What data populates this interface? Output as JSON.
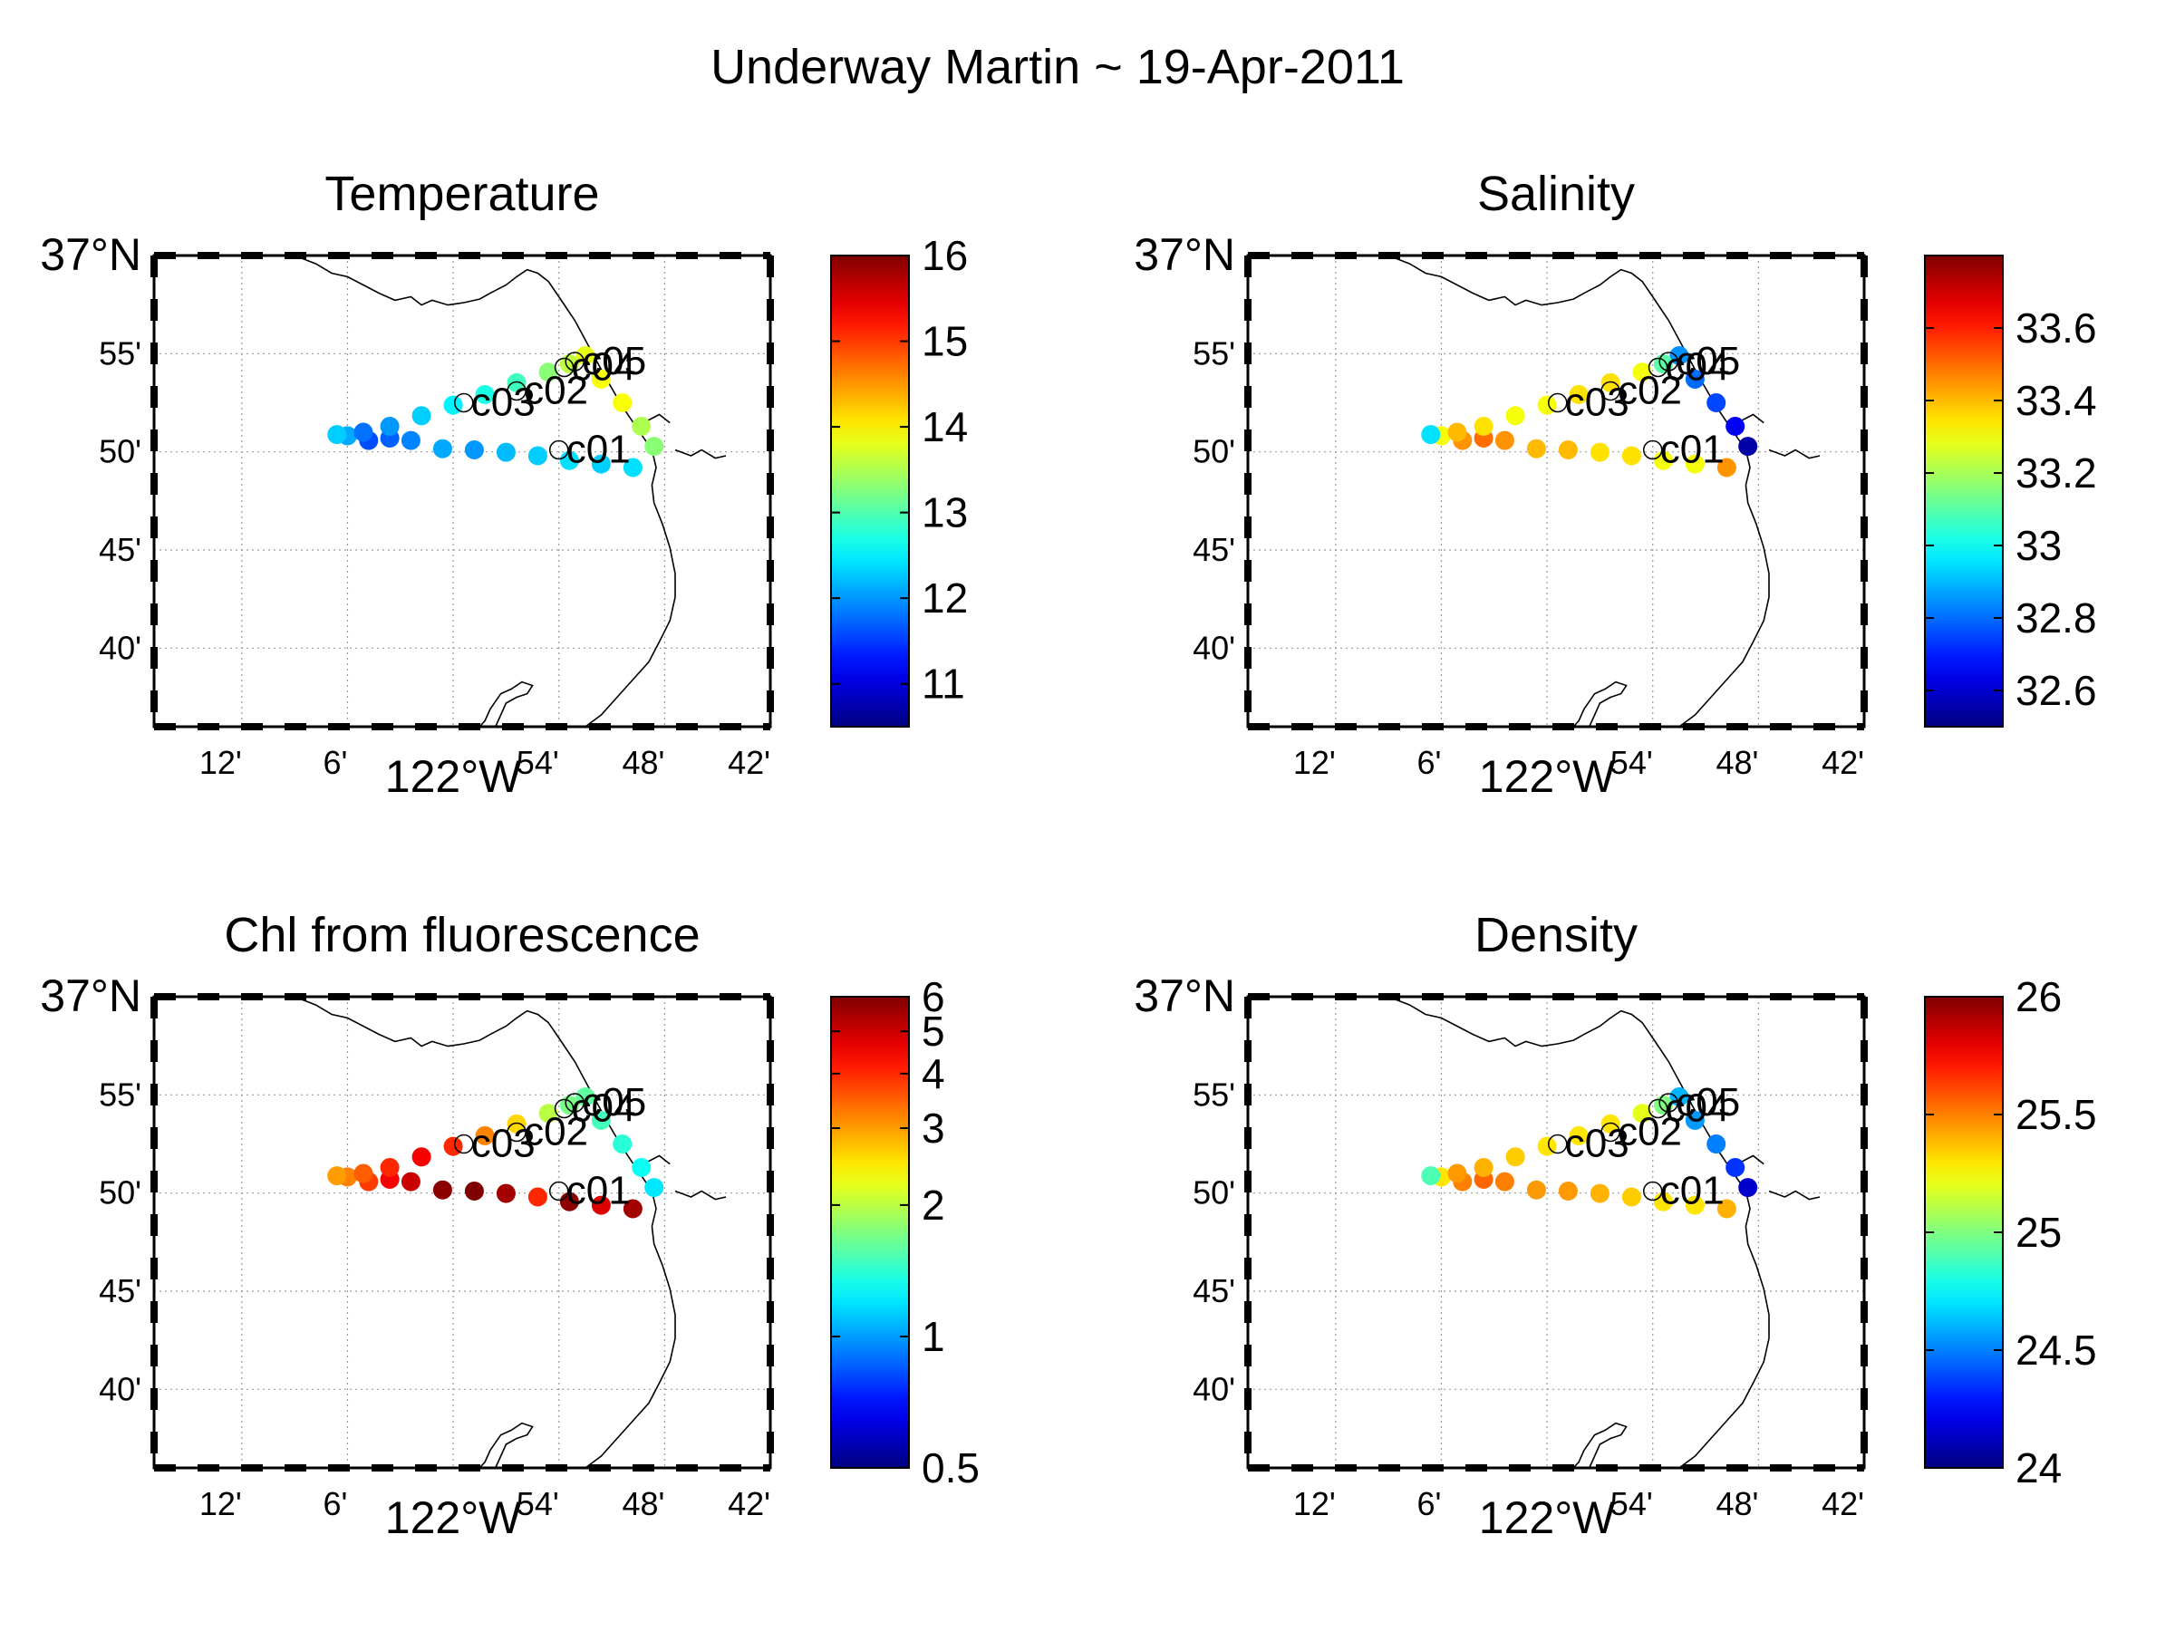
{
  "figure": {
    "title": "Underway Martin ~ 19-Apr-2011"
  },
  "map": {
    "lon_range": [
      -122.283,
      -121.7
    ],
    "lat_range": [
      36.6,
      37.0
    ],
    "x_ticks": [
      {
        "lon": -122.2,
        "label": "12'"
      },
      {
        "lon": -122.1,
        "label": "6'"
      },
      {
        "lon": -122.0,
        "label": "122°W"
      },
      {
        "lon": -121.9,
        "label": "54'"
      },
      {
        "lon": -121.8,
        "label": "48'"
      },
      {
        "lon": -121.7,
        "label": "42'"
      }
    ],
    "y_ticks": [
      {
        "lat": 37.0,
        "label": "37°N"
      },
      {
        "lat": 36.9167,
        "label": "55'"
      },
      {
        "lat": 36.8333,
        "label": "50'"
      },
      {
        "lat": 36.75,
        "label": "45'"
      },
      {
        "lat": 36.6667,
        "label": "40'"
      }
    ],
    "colormap": "jet",
    "coastline_color": "#000000",
    "grid": true
  },
  "stations": [
    {
      "label": "c01",
      "lon": -121.9,
      "lat": 36.835
    },
    {
      "label": "c02",
      "lon": -121.94,
      "lat": 36.885
    },
    {
      "label": "c03",
      "lon": -121.99,
      "lat": 36.875
    },
    {
      "label": "c04",
      "lon": -121.895,
      "lat": 36.905
    },
    {
      "label": "c05",
      "lon": -121.885,
      "lat": 36.91
    }
  ],
  "chart_data": [
    {
      "type": "scatter",
      "title": "Temperature",
      "xlabel": "",
      "ylabel": "",
      "colorbar": {
        "min": 10.5,
        "max": 16,
        "ticks": [
          11,
          12,
          13,
          14,
          15,
          16
        ],
        "tick_labels": [
          "11",
          "12",
          "13",
          "14",
          "15",
          "16"
        ],
        "scale": "linear"
      },
      "points": [
        {
          "lon": -121.875,
          "lat": 36.915,
          "value": 13.8
        },
        {
          "lon": -121.86,
          "lat": 36.895,
          "value": 13.9
        },
        {
          "lon": -121.84,
          "lat": 36.875,
          "value": 13.9
        },
        {
          "lon": -121.822,
          "lat": 36.855,
          "value": 13.5
        },
        {
          "lon": -121.81,
          "lat": 36.838,
          "value": 13.3
        },
        {
          "lon": -121.83,
          "lat": 36.82,
          "value": 12.4
        },
        {
          "lon": -121.86,
          "lat": 36.823,
          "value": 12.3
        },
        {
          "lon": -121.89,
          "lat": 36.826,
          "value": 12.4
        },
        {
          "lon": -121.92,
          "lat": 36.83,
          "value": 12.3
        },
        {
          "lon": -121.95,
          "lat": 36.833,
          "value": 12.2
        },
        {
          "lon": -121.98,
          "lat": 36.835,
          "value": 12.0
        },
        {
          "lon": -122.01,
          "lat": 36.836,
          "value": 12.1
        },
        {
          "lon": -122.04,
          "lat": 36.843,
          "value": 11.9
        },
        {
          "lon": -122.06,
          "lat": 36.845,
          "value": 11.7
        },
        {
          "lon": -122.08,
          "lat": 36.843,
          "value": 11.6
        },
        {
          "lon": -122.1,
          "lat": 36.847,
          "value": 12.1
        },
        {
          "lon": -122.11,
          "lat": 36.848,
          "value": 12.3
        },
        {
          "lon": -122.085,
          "lat": 36.85,
          "value": 11.8
        },
        {
          "lon": -122.06,
          "lat": 36.855,
          "value": 12.0
        },
        {
          "lon": -122.03,
          "lat": 36.864,
          "value": 12.3
        },
        {
          "lon": -122.0,
          "lat": 36.873,
          "value": 12.5
        },
        {
          "lon": -121.97,
          "lat": 36.882,
          "value": 12.7
        },
        {
          "lon": -121.94,
          "lat": 36.892,
          "value": 12.9
        },
        {
          "lon": -121.91,
          "lat": 36.901,
          "value": 13.3
        },
        {
          "lon": -121.89,
          "lat": 36.908,
          "value": 13.6
        }
      ]
    },
    {
      "type": "scatter",
      "title": "Salinity",
      "xlabel": "",
      "ylabel": "",
      "colorbar": {
        "min": 32.5,
        "max": 33.8,
        "ticks": [
          32.6,
          32.8,
          33,
          33.2,
          33.4,
          33.6
        ],
        "tick_labels": [
          "32.6",
          "32.8",
          "33",
          "33.2",
          "33.4",
          "33.6"
        ],
        "scale": "linear"
      },
      "points": [
        {
          "lon": -121.875,
          "lat": 36.915,
          "value": 32.85
        },
        {
          "lon": -121.86,
          "lat": 36.895,
          "value": 32.8
        },
        {
          "lon": -121.84,
          "lat": 36.875,
          "value": 32.75
        },
        {
          "lon": -121.822,
          "lat": 36.855,
          "value": 32.65
        },
        {
          "lon": -121.81,
          "lat": 36.838,
          "value": 32.55
        },
        {
          "lon": -121.83,
          "lat": 36.82,
          "value": 33.45
        },
        {
          "lon": -121.86,
          "lat": 36.823,
          "value": 33.3
        },
        {
          "lon": -121.89,
          "lat": 36.826,
          "value": 33.3
        },
        {
          "lon": -121.92,
          "lat": 36.83,
          "value": 33.35
        },
        {
          "lon": -121.95,
          "lat": 36.833,
          "value": 33.35
        },
        {
          "lon": -121.98,
          "lat": 36.835,
          "value": 33.4
        },
        {
          "lon": -122.01,
          "lat": 36.836,
          "value": 33.4
        },
        {
          "lon": -122.04,
          "lat": 36.843,
          "value": 33.45
        },
        {
          "lon": -122.06,
          "lat": 36.845,
          "value": 33.5
        },
        {
          "lon": -122.08,
          "lat": 36.843,
          "value": 33.45
        },
        {
          "lon": -122.1,
          "lat": 36.847,
          "value": 33.3
        },
        {
          "lon": -122.11,
          "lat": 36.848,
          "value": 32.95
        },
        {
          "lon": -122.085,
          "lat": 36.85,
          "value": 33.4
        },
        {
          "lon": -122.06,
          "lat": 36.855,
          "value": 33.35
        },
        {
          "lon": -122.03,
          "lat": 36.864,
          "value": 33.3
        },
        {
          "lon": -122.0,
          "lat": 36.873,
          "value": 33.3
        },
        {
          "lon": -121.97,
          "lat": 36.882,
          "value": 33.35
        },
        {
          "lon": -121.94,
          "lat": 36.892,
          "value": 33.35
        },
        {
          "lon": -121.91,
          "lat": 36.901,
          "value": 33.3
        },
        {
          "lon": -121.89,
          "lat": 36.908,
          "value": 33.1
        }
      ]
    },
    {
      "type": "scatter",
      "title": "Chl from fluorescence",
      "xlabel": "",
      "ylabel": "",
      "colorbar": {
        "min": 0.5,
        "max": 6,
        "ticks": [
          0.5,
          1,
          2,
          3,
          4,
          5,
          6
        ],
        "tick_labels": [
          "0.5",
          "1",
          "2",
          "3",
          "4",
          "5",
          "6"
        ],
        "scale": "log"
      },
      "points": [
        {
          "lon": -121.875,
          "lat": 36.915,
          "value": 1.6
        },
        {
          "lon": -121.86,
          "lat": 36.895,
          "value": 1.5
        },
        {
          "lon": -121.84,
          "lat": 36.875,
          "value": 1.4
        },
        {
          "lon": -121.822,
          "lat": 36.855,
          "value": 1.3
        },
        {
          "lon": -121.81,
          "lat": 36.838,
          "value": 1.2
        },
        {
          "lon": -121.83,
          "lat": 36.82,
          "value": 5.5
        },
        {
          "lon": -121.86,
          "lat": 36.823,
          "value": 4.8
        },
        {
          "lon": -121.89,
          "lat": 36.826,
          "value": 5.8
        },
        {
          "lon": -121.92,
          "lat": 36.83,
          "value": 4.0
        },
        {
          "lon": -121.95,
          "lat": 36.833,
          "value": 5.5
        },
        {
          "lon": -121.98,
          "lat": 36.835,
          "value": 6.0
        },
        {
          "lon": -122.01,
          "lat": 36.836,
          "value": 5.8
        },
        {
          "lon": -122.04,
          "lat": 36.843,
          "value": 5.0
        },
        {
          "lon": -122.06,
          "lat": 36.845,
          "value": 4.5
        },
        {
          "lon": -122.08,
          "lat": 36.843,
          "value": 3.8
        },
        {
          "lon": -122.1,
          "lat": 36.847,
          "value": 3.2
        },
        {
          "lon": -122.11,
          "lat": 36.848,
          "value": 3.0
        },
        {
          "lon": -122.085,
          "lat": 36.85,
          "value": 3.5
        },
        {
          "lon": -122.06,
          "lat": 36.855,
          "value": 4.0
        },
        {
          "lon": -122.03,
          "lat": 36.864,
          "value": 4.5
        },
        {
          "lon": -122.0,
          "lat": 36.873,
          "value": 4.0
        },
        {
          "lon": -121.97,
          "lat": 36.882,
          "value": 3.2
        },
        {
          "lon": -121.94,
          "lat": 36.892,
          "value": 2.6
        },
        {
          "lon": -121.91,
          "lat": 36.901,
          "value": 2.0
        },
        {
          "lon": -121.89,
          "lat": 36.908,
          "value": 1.7
        }
      ]
    },
    {
      "type": "scatter",
      "title": "Density",
      "xlabel": "",
      "ylabel": "",
      "colorbar": {
        "min": 24,
        "max": 26,
        "ticks": [
          24,
          24.5,
          25,
          25.5,
          26
        ],
        "tick_labels": [
          "24",
          "24.5",
          "25",
          "25.5",
          "26"
        ],
        "scale": "linear"
      },
      "points": [
        {
          "lon": -121.875,
          "lat": 36.915,
          "value": 24.6
        },
        {
          "lon": -121.86,
          "lat": 36.895,
          "value": 24.55
        },
        {
          "lon": -121.84,
          "lat": 36.875,
          "value": 24.5
        },
        {
          "lon": -121.822,
          "lat": 36.855,
          "value": 24.35
        },
        {
          "lon": -121.81,
          "lat": 36.838,
          "value": 24.15
        },
        {
          "lon": -121.83,
          "lat": 36.82,
          "value": 25.4
        },
        {
          "lon": -121.86,
          "lat": 36.823,
          "value": 25.3
        },
        {
          "lon": -121.89,
          "lat": 36.826,
          "value": 25.3
        },
        {
          "lon": -121.92,
          "lat": 36.83,
          "value": 25.35
        },
        {
          "lon": -121.95,
          "lat": 36.833,
          "value": 25.4
        },
        {
          "lon": -121.98,
          "lat": 36.835,
          "value": 25.45
        },
        {
          "lon": -122.01,
          "lat": 36.836,
          "value": 25.45
        },
        {
          "lon": -122.04,
          "lat": 36.843,
          "value": 25.5
        },
        {
          "lon": -122.06,
          "lat": 36.845,
          "value": 25.55
        },
        {
          "lon": -122.08,
          "lat": 36.843,
          "value": 25.5
        },
        {
          "lon": -122.1,
          "lat": 36.847,
          "value": 25.3
        },
        {
          "lon": -122.11,
          "lat": 36.848,
          "value": 24.9
        },
        {
          "lon": -122.085,
          "lat": 36.85,
          "value": 25.45
        },
        {
          "lon": -122.06,
          "lat": 36.855,
          "value": 25.4
        },
        {
          "lon": -122.03,
          "lat": 36.864,
          "value": 25.35
        },
        {
          "lon": -122.0,
          "lat": 36.873,
          "value": 25.3
        },
        {
          "lon": -121.97,
          "lat": 36.882,
          "value": 25.3
        },
        {
          "lon": -121.94,
          "lat": 36.892,
          "value": 25.3
        },
        {
          "lon": -121.91,
          "lat": 36.901,
          "value": 25.2
        },
        {
          "lon": -121.89,
          "lat": 36.908,
          "value": 25.0
        }
      ]
    }
  ]
}
